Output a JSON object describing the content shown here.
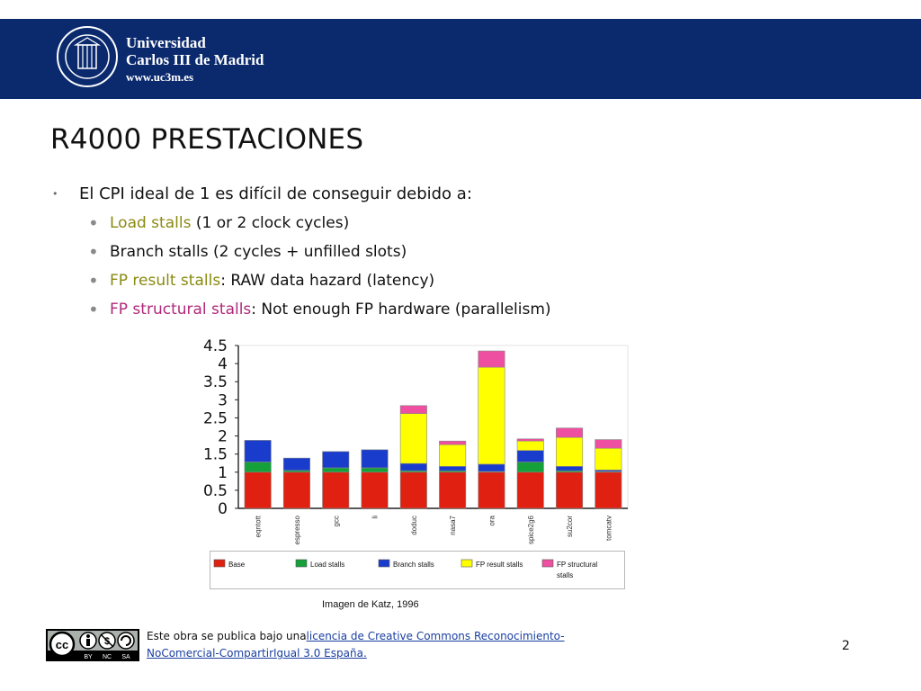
{
  "header": {
    "university_line1": "Universidad",
    "university_line2": "Carlos III de Madrid",
    "url": "www.uc3m.es"
  },
  "slide": {
    "title": "R4000 PRESTACIONES",
    "main_bullet": "El CPI ideal de 1 es difícil de conseguir debido a:",
    "sub_bullets": [
      {
        "highlight": "Load stalls",
        "rest": " (1 or 2 clock cycles)",
        "highlight_color": "olive"
      },
      {
        "highlight": "",
        "rest": "Branch stalls (2 cycles + unfilled slots)",
        "highlight_color": "none"
      },
      {
        "highlight": "FP result stalls",
        "rest": ": RAW data hazard (latency)",
        "highlight_color": "olive"
      },
      {
        "highlight": "FP structural stalls",
        "rest": ": Not enough FP hardware (parallelism)",
        "highlight_color": "magenta"
      }
    ]
  },
  "chart_data": {
    "type": "bar",
    "stacked": true,
    "categories": [
      "eqntott",
      "espresso",
      "gcc",
      "li",
      "doduc",
      "nasa7",
      "ora",
      "spice2g6",
      "su2cor",
      "tomcatv"
    ],
    "series": [
      {
        "name": "Base",
        "color": "#e02010",
        "values": [
          1,
          1,
          1,
          1,
          1,
          1,
          1,
          1,
          1,
          1
        ]
      },
      {
        "name": "Load stalls",
        "color": "#15a03a",
        "values": [
          0.28,
          0.05,
          0.12,
          0.12,
          0.04,
          0.04,
          0.02,
          0.28,
          0.04,
          0.02
        ]
      },
      {
        "name": "Branch stalls",
        "color": "#1a3ccc",
        "values": [
          0.6,
          0.34,
          0.45,
          0.5,
          0.2,
          0.12,
          0.2,
          0.32,
          0.12,
          0.04
        ]
      },
      {
        "name": "FP result stalls",
        "color": "#ffff00",
        "values": [
          0,
          0,
          0,
          0,
          1.38,
          0.6,
          2.68,
          0.26,
          0.8,
          0.6
        ]
      },
      {
        "name": "FP structural stalls",
        "color": "#ee4fa0",
        "values": [
          0,
          0,
          0,
          0,
          0.22,
          0.1,
          0.45,
          0.06,
          0.26,
          0.24
        ]
      }
    ],
    "ylim": [
      0,
      4.5
    ],
    "yticks": [
      "0",
      "0.5",
      "1",
      "1.5",
      "2",
      "2.5",
      "3",
      "3.5",
      "4",
      "4.5"
    ],
    "legend": [
      "Base",
      "Load stalls",
      "Branch stalls",
      "FP result stalls",
      "FP structural stalls"
    ],
    "caption": "Imagen de Katz, 1996"
  },
  "footer": {
    "license_prefix": "Este obra se publica bajo una",
    "license_link_line1": "licencia de Creative Commons Reconocimiento-",
    "license_link_line2": "NoComercial-CompartirIgual 3.0 España.",
    "page_number": "2",
    "cc_badge_labels": [
      "BY",
      "NC",
      "SA"
    ]
  }
}
